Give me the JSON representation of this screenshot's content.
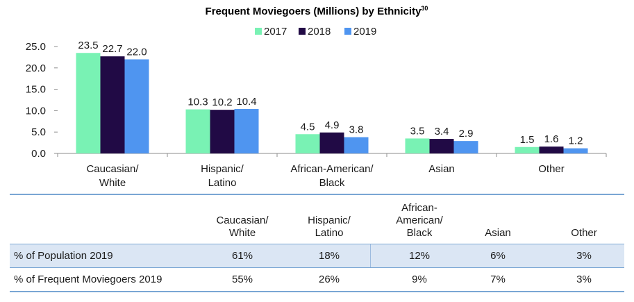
{
  "chart_data": {
    "type": "bar",
    "title": "Frequent Moviegoers (Millions) by Ethnicity",
    "title_superscript": "30",
    "categories": [
      [
        "Caucasian/",
        "White"
      ],
      [
        "Hispanic/",
        "Latino"
      ],
      [
        "African-American/",
        "Black"
      ],
      [
        "Asian"
      ],
      [
        "Other"
      ]
    ],
    "series": [
      {
        "name": "2017",
        "color": "#79f2b4",
        "values": [
          23.5,
          10.3,
          4.5,
          3.5,
          1.5
        ],
        "labels": [
          "23.5",
          "10.3",
          "4.5",
          "3.5",
          "1.5"
        ]
      },
      {
        "name": "2018",
        "color": "#210a45",
        "values": [
          22.7,
          10.2,
          4.9,
          3.4,
          1.6
        ],
        "labels": [
          "22.7",
          "10.2",
          "4.9",
          "3.4",
          "1.6"
        ]
      },
      {
        "name": "2019",
        "color": "#4f95f0",
        "values": [
          22.0,
          10.4,
          3.8,
          2.9,
          1.2
        ],
        "labels": [
          "22.0",
          "10.4",
          "3.8",
          "2.9",
          "1.2"
        ]
      }
    ],
    "ylim": [
      0,
      25
    ],
    "yticks": [
      0,
      5,
      10,
      15,
      20,
      25
    ],
    "ytick_labels": [
      "0.0",
      "5.0",
      "10.0",
      "15.0",
      "20.0",
      "25.0"
    ],
    "xlabel": "",
    "ylabel": "",
    "legend_position": "top-center",
    "grid": false
  },
  "table": {
    "headers": [
      [
        "Caucasian/",
        "White"
      ],
      [
        "Hispanic/",
        "Latino"
      ],
      [
        "African-",
        "American/",
        "Black"
      ],
      [
        "Asian"
      ],
      [
        "Other"
      ]
    ],
    "rows": [
      {
        "label": "% of Population 2019",
        "cells": [
          "61%",
          "18%",
          "12%",
          "6%",
          "3%"
        ]
      },
      {
        "label": "% of Frequent Moviegoers 2019",
        "cells": [
          "55%",
          "26%",
          "9%",
          "7%",
          "3%"
        ]
      }
    ],
    "colors": {
      "rule": "#7aa6d4",
      "shade": "#dbe6f4"
    }
  }
}
